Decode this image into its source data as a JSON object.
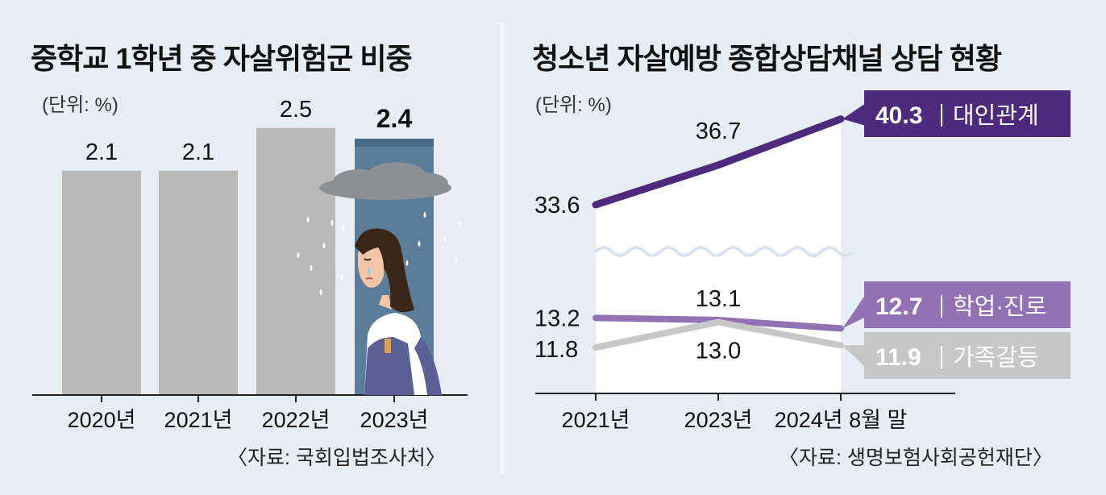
{
  "left_panel": {
    "title": "중학교 1학년 중 자살위험군 비중",
    "unit": "(단위: %)",
    "source": "〈자료: 국회입법조사처〉"
  },
  "right_panel": {
    "title": "청소년 자살예방 종합상담채널 상담 현황",
    "unit": "(단위: %)",
    "source": "〈자료: 생명보험사회공헌재단〉"
  },
  "chart_data": [
    {
      "type": "bar",
      "title": "중학교 1학년 중 자살위험군 비중",
      "unit": "(단위: %)",
      "categories": [
        "2020년",
        "2021년",
        "2022년",
        "2023년"
      ],
      "values": [
        2.1,
        2.1,
        2.5,
        2.4
      ],
      "value_labels": [
        "2.1",
        "2.1",
        "2.5",
        "2.4"
      ],
      "highlight_index": 3,
      "colors": {
        "bar": "#b9b9b9",
        "highlight": "#5c7d99",
        "highlight_top": "#4a6b87"
      },
      "grid": false
    },
    {
      "type": "line",
      "title": "청소년 자살예방 종합상담채널 상담 현황",
      "unit": "(단위: %)",
      "x": [
        "2021년",
        "2023년",
        "2024년 8월 말"
      ],
      "y_axis_break": true,
      "series": [
        {
          "name": "대인관계",
          "values": [
            33.6,
            36.7,
            40.3
          ],
          "labels": [
            "33.6",
            "36.7",
            "40.3"
          ],
          "end_label": "40.3",
          "color": "#4e2a7c"
        },
        {
          "name": "학업·진로",
          "values": [
            13.2,
            13.1,
            12.7
          ],
          "labels": [
            "13.2",
            "13.1",
            "12.7"
          ],
          "end_label": "12.7",
          "color": "#9371b5"
        },
        {
          "name": "가족갈등",
          "values": [
            11.8,
            13.0,
            11.9
          ],
          "labels": [
            "11.8",
            "13.0",
            "11.9"
          ],
          "end_label": "11.9",
          "color": "#c7c7c7"
        }
      ],
      "grid": false
    }
  ]
}
